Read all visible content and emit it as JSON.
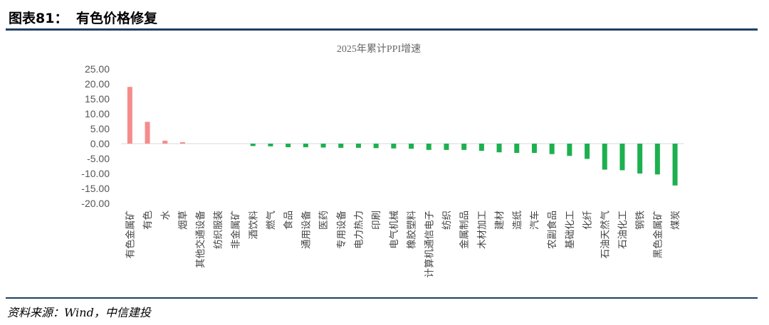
{
  "header": {
    "figure_number": "图表81：",
    "title": "有色价格修复"
  },
  "source": "资料来源：Wind，中信建投",
  "colors": {
    "positive": "#f58c8c",
    "negative": "#1db04f",
    "rule": "#1f3f66"
  },
  "chart_data": {
    "type": "bar",
    "title": "2025年累计PPI增速",
    "xlabel": "",
    "ylabel": "",
    "ylim": [
      -20,
      25
    ],
    "yticks": [
      "25.00",
      "20.00",
      "15.00",
      "10.00",
      "5.00",
      "0.00",
      "-5.00",
      "-10.00",
      "-15.00",
      "-20.00"
    ],
    "grid": false,
    "legend": "none",
    "categories": [
      "有色金属矿",
      "有色",
      "水",
      "烟草",
      "其他交通设备",
      "纺织服装",
      "非金属矿",
      "酒饮料",
      "燃气",
      "食品",
      "通用设备",
      "医药",
      "专用设备",
      "电力热力",
      "印刷",
      "电气机械",
      "橡胶塑料",
      "计算机通信电子",
      "纺织",
      "金属制品",
      "木材加工",
      "建材",
      "造纸",
      "汽车",
      "农副食品",
      "基础化工",
      "化纤",
      "石油天然气",
      "石油化工",
      "钢铁",
      "黑色金属矿",
      "煤炭"
    ],
    "values": [
      19.0,
      7.3,
      1.0,
      0.5,
      0.0,
      0.0,
      0.0,
      -0.8,
      -0.9,
      -1.2,
      -1.2,
      -1.3,
      -1.4,
      -1.4,
      -1.5,
      -1.6,
      -1.7,
      -2.1,
      -2.1,
      -2.1,
      -2.4,
      -2.9,
      -3.1,
      -3.1,
      -3.5,
      -4.1,
      -5.1,
      -8.7,
      -8.9,
      -10.0,
      -10.3,
      -14.0
    ]
  }
}
